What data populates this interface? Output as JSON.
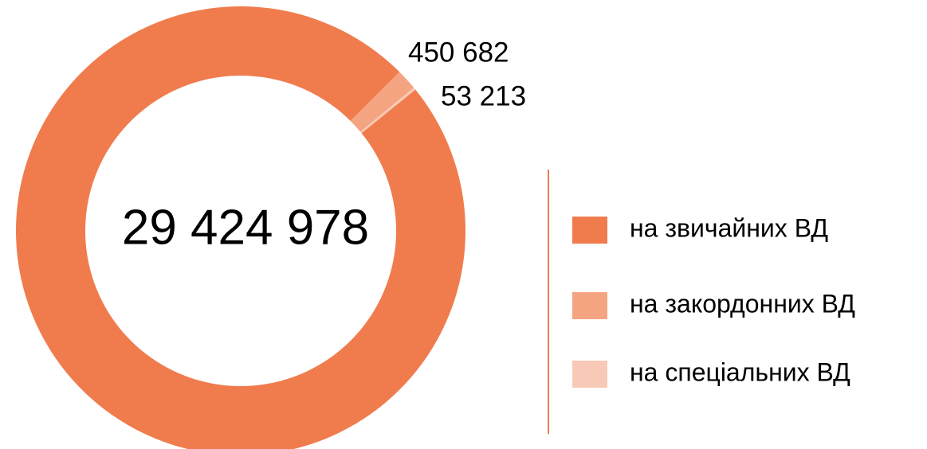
{
  "chart_data": {
    "type": "donut",
    "categories": [
      "на звичайних ВД",
      "на закордонних ВД",
      "на спеціальних ВД"
    ],
    "values": [
      29424978,
      450682,
      53213
    ],
    "value_labels": [
      "29 424 978",
      "450 682",
      "53 213"
    ],
    "colors": [
      "#f07c4e",
      "#f5a482",
      "#f8c9b6"
    ]
  }
}
